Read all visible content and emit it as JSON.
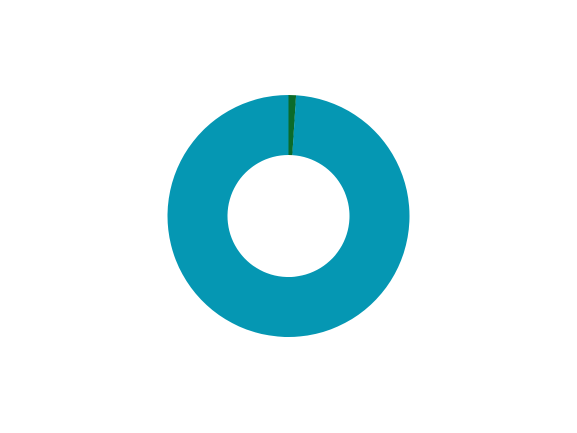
{
  "chart_data": {
    "type": "pie",
    "variant": "donut",
    "title": "",
    "legend": "none",
    "series": [
      {
        "values": [
          1,
          99
        ],
        "colors": [
          "#0b6b2a",
          "#0597b3"
        ]
      }
    ]
  }
}
